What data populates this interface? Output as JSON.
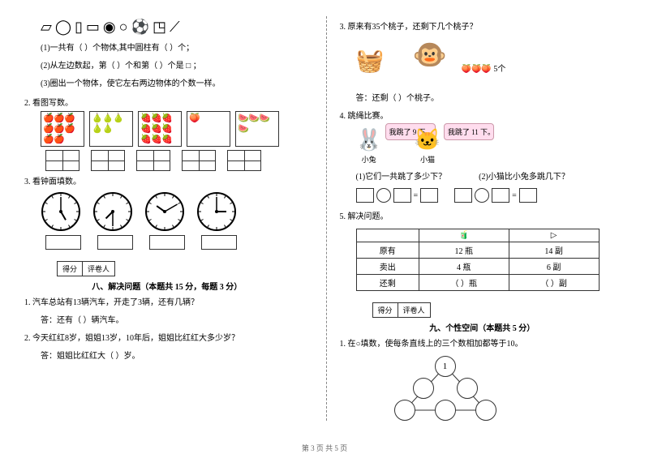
{
  "left": {
    "shapes": [
      "▱",
      "◯",
      "▯",
      "▭",
      "◉",
      "○",
      "⚽",
      "◳",
      "⟋"
    ],
    "q1": "(1)一共有（  ）个物体,其中圆柱有（   ）个；",
    "q2": "(2)从左边数起，第（  ）个和第（  ）个是 □ ；",
    "q3": "(3)圈出一个物体，使它左右两边物体的个数一样。",
    "s2_label": "2. 看图写数。",
    "imgs": {
      "box1": [
        "🍎",
        "🍎",
        "🍎",
        "🍎",
        "🍎",
        "🍎",
        "🍎",
        "🍎"
      ],
      "box2": [
        "🍐",
        "🍐",
        "🍐",
        "🍐",
        "🍐"
      ],
      "box3": [
        "🍓",
        "🍓",
        "🍓",
        "🍓",
        "🍓",
        "🍓",
        "🍓",
        "🍓",
        "🍓"
      ],
      "box4": [
        "🍑"
      ],
      "box5": [
        "🍉",
        "🍉",
        "🍉",
        "🍉"
      ]
    },
    "s3_label": "3. 看钟面填数。",
    "clocks": [
      {
        "h": 5,
        "m": 0
      },
      {
        "h": 7,
        "m": 30
      },
      {
        "h": 10,
        "m": 10
      },
      {
        "h": 3,
        "m": 0
      }
    ],
    "score": {
      "a": "得分",
      "b": "评卷人"
    },
    "section8": "八、解决问题（本题共 15 分，每题 3 分）",
    "p1": "1. 汽车总站有13辆汽车，开走了3辆，还有几辆？",
    "a1": "答：还有（   ）辆汽车。",
    "p2": "2. 今天红红8岁，姐姐13岁，10年后，姐姐比红红大多少岁？",
    "a2": "答：姐姐比红红大（   ）岁。"
  },
  "right": {
    "p3": "3. 原来有35个桃子，还剩下几个桃子？",
    "peach_label": "5个",
    "a3": "答：还剩（   ）个桃子。",
    "p4": "4. 跳绳比赛。",
    "rabbit": {
      "name": "小兔",
      "bubble": "我跳了 9 下。"
    },
    "cat": {
      "name": "小猫",
      "bubble": "我跳了 11 下。"
    },
    "sub1": "(1)它们一共跳了多少下？",
    "sub2": "(2)小猫比小兔多跳几下？",
    "eq_eq": "=",
    "p5": "5. 解决问题。",
    "table": {
      "headers": [
        "",
        "🧃",
        "▷"
      ],
      "rows": [
        [
          "原有",
          "12 瓶",
          "14 副"
        ],
        [
          "卖出",
          "4 瓶",
          "6 副"
        ],
        [
          "还剩",
          "（    ）瓶",
          "（    ）副"
        ]
      ]
    },
    "score": {
      "a": "得分",
      "b": "评卷人"
    },
    "section9": "九、个性空间（本题共 5 分）",
    "p9": "1. 在○填数，使每条直线上的三个数相加都等于10。",
    "tri_top": "1"
  },
  "footer": "第 3 页 共 5 页",
  "colors": {
    "bubble_border": "#c9a",
    "bubble_bg": "#fde"
  }
}
